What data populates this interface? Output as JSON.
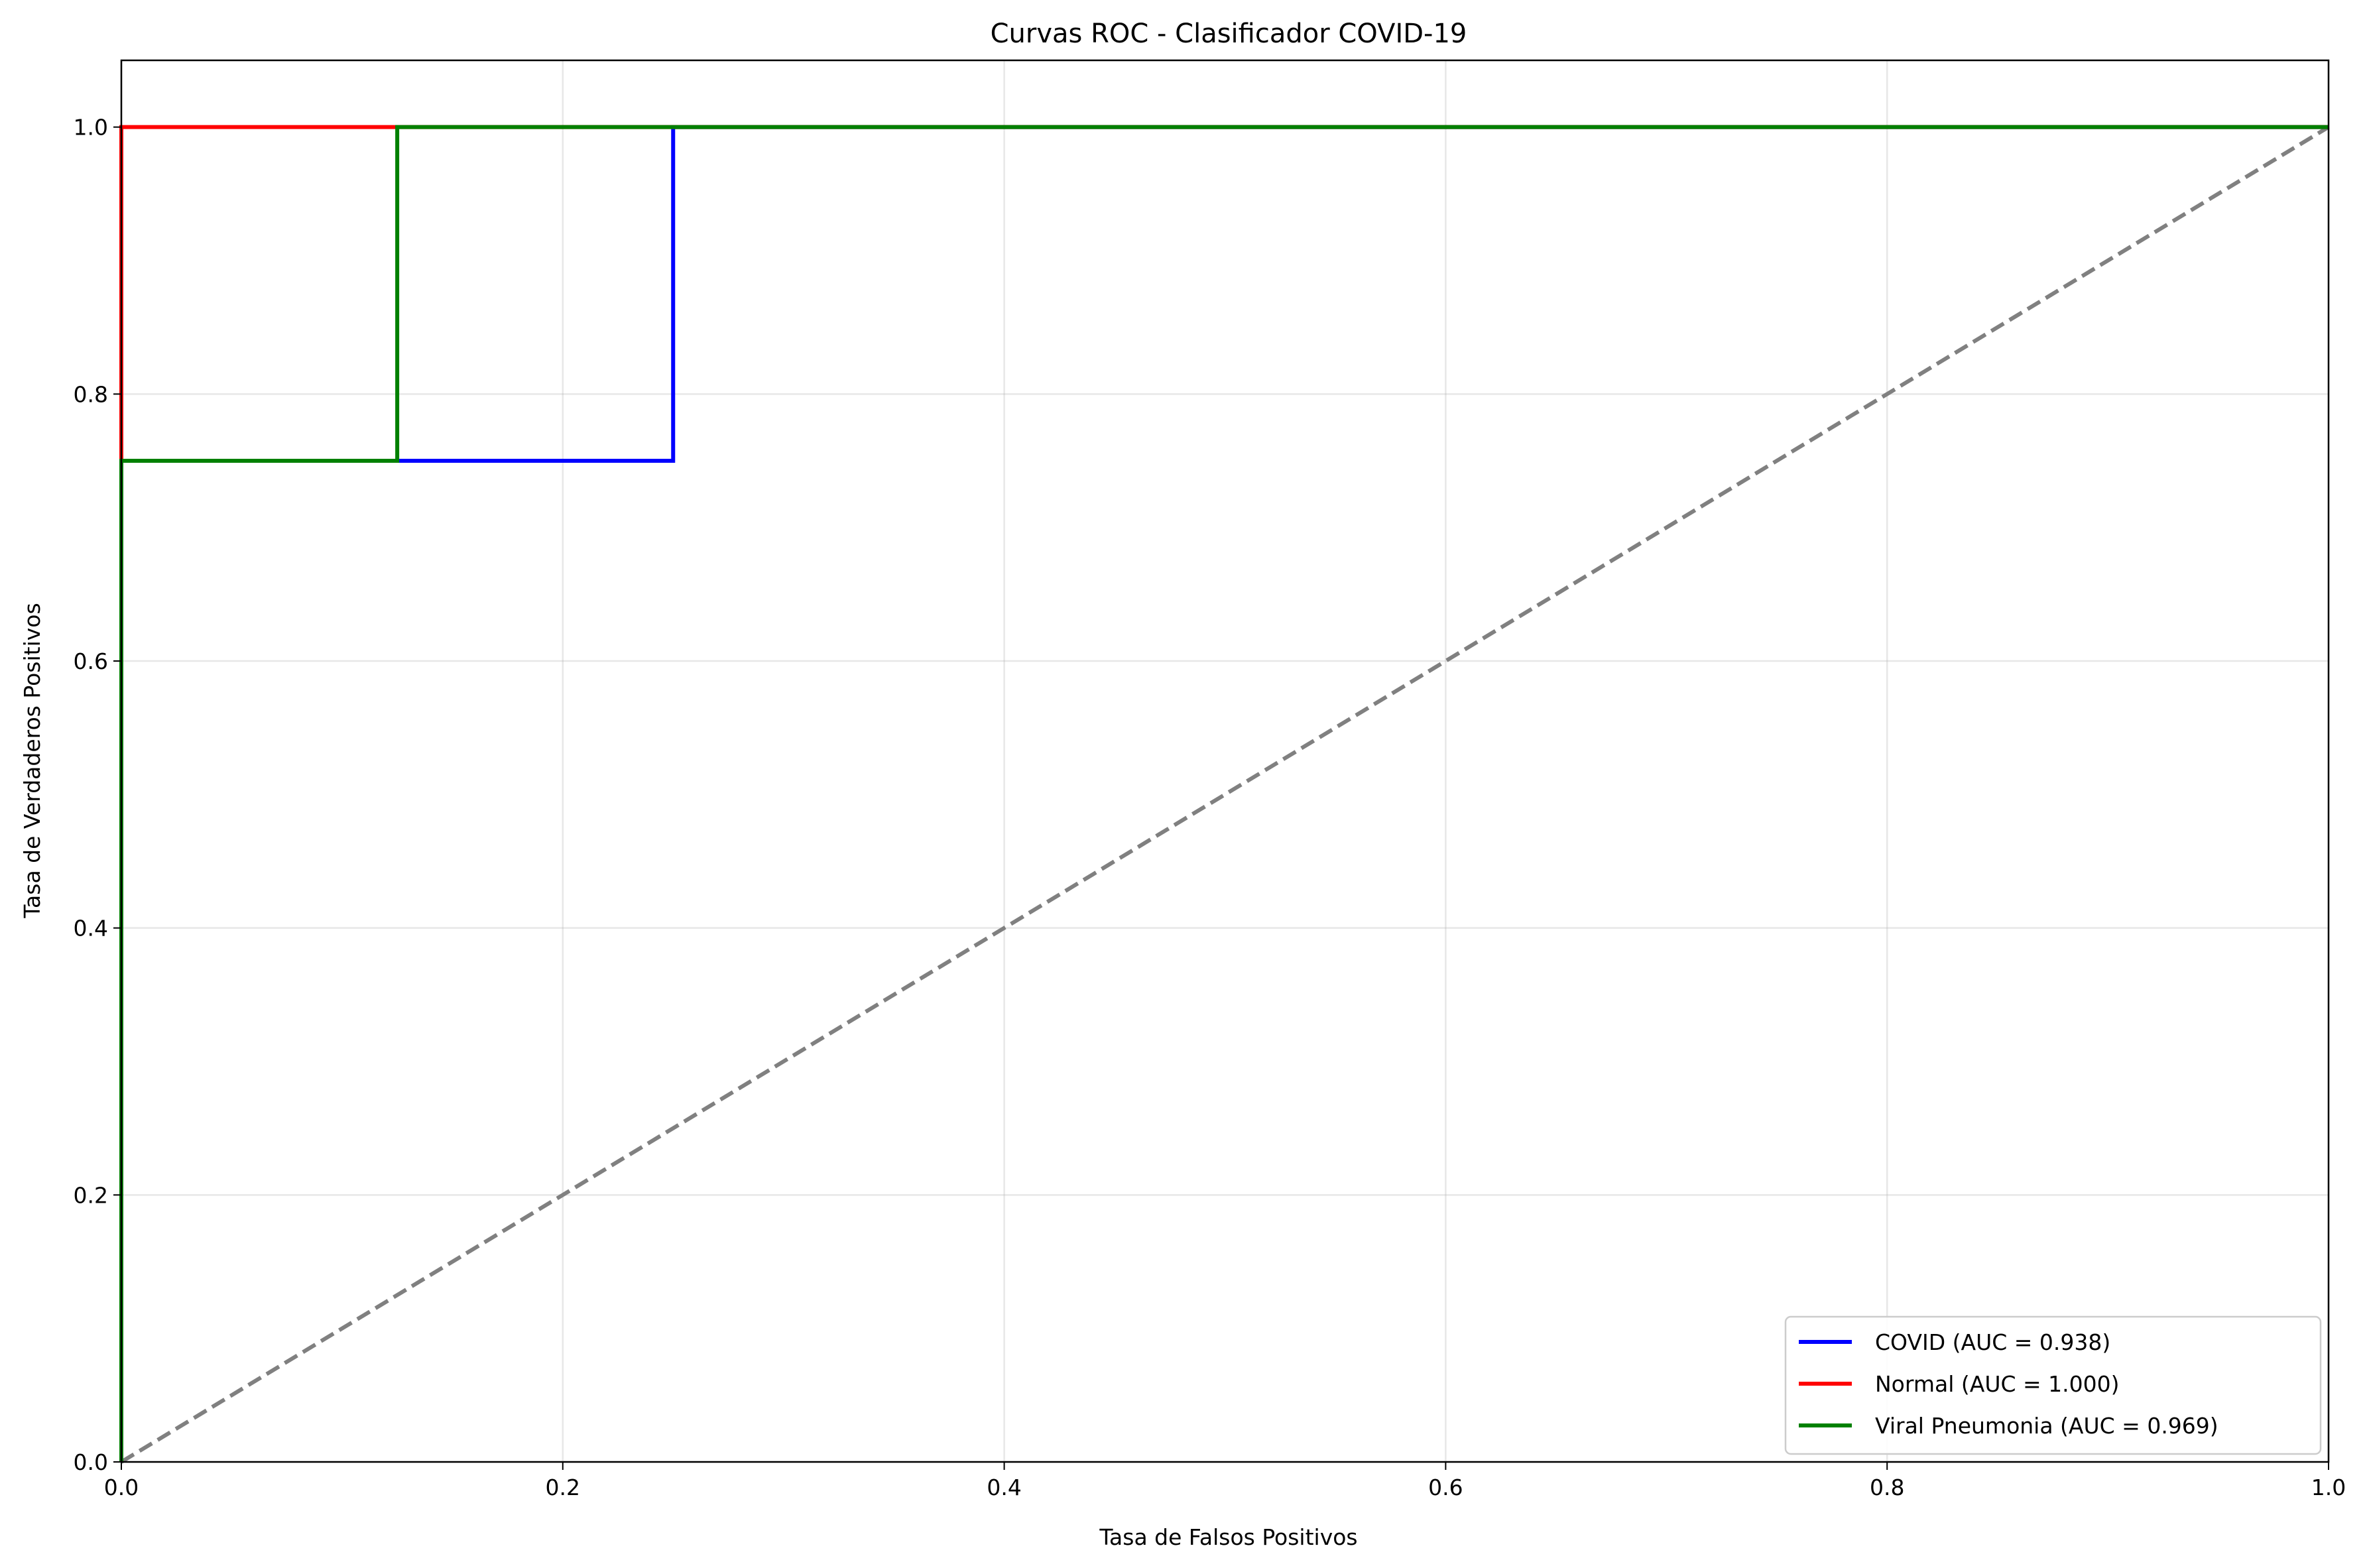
{
  "chart_data": {
    "type": "line",
    "title": "Curvas ROC - Clasificador COVID-19",
    "xlabel": "Tasa de Falsos Positivos",
    "ylabel": "Tasa de Verdaderos Positivos",
    "xlim": [
      0.0,
      1.0
    ],
    "ylim": [
      0.0,
      1.05
    ],
    "xticks": [
      "0.0",
      "0.2",
      "0.4",
      "0.6",
      "0.8",
      "1.0"
    ],
    "yticks": [
      "0.0",
      "0.2",
      "0.4",
      "0.6",
      "0.8",
      "1.0"
    ],
    "grid": true,
    "legend_position": "lower-right",
    "series": [
      {
        "name": "COVID (AUC = 0.938)",
        "color": "#0000ff",
        "x": [
          0.0,
          0.0,
          0.0,
          0.25,
          0.25,
          1.0
        ],
        "y": [
          0.0,
          0.25,
          0.75,
          0.75,
          1.0,
          1.0
        ]
      },
      {
        "name": "Normal (AUC = 1.000)",
        "color": "#ff0000",
        "x": [
          0.0,
          0.0,
          0.0,
          1.0
        ],
        "y": [
          0.0,
          0.25,
          1.0,
          1.0
        ]
      },
      {
        "name": "Viral Pneumonia (AUC = 0.969)",
        "color": "#008000",
        "x": [
          0.0,
          0.0,
          0.0,
          0.125,
          0.125,
          1.0
        ],
        "y": [
          0.0,
          0.25,
          0.75,
          0.75,
          1.0,
          1.0
        ]
      }
    ],
    "reference_line": {
      "x": [
        0.0,
        1.0
      ],
      "y": [
        0.0,
        1.0
      ],
      "color": "#808080",
      "style": "dashed"
    }
  }
}
